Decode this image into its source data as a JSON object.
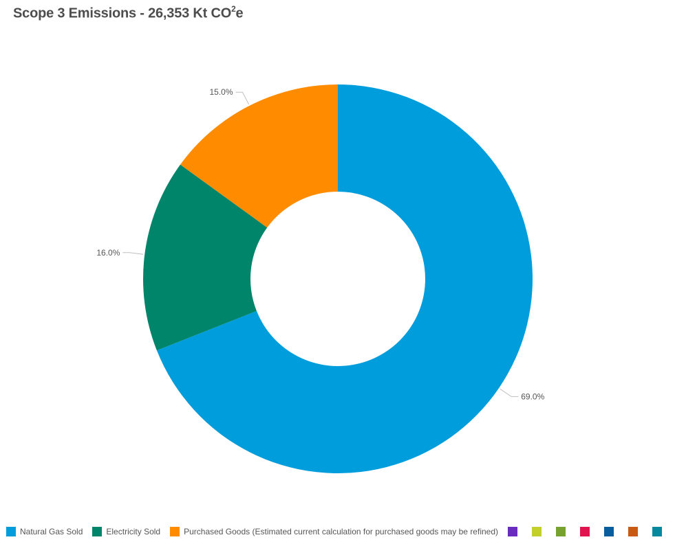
{
  "header": {
    "title_main": "Scope 3 Emissions - 26,353 Kt CO",
    "title_sup": "2",
    "title_end": "e"
  },
  "chart_data": {
    "type": "pie",
    "donut": true,
    "title": "Scope 3 Emissions - 26,353 Kt CO²e",
    "unit": "%",
    "legend_position": "bottom-left",
    "slices": [
      {
        "name": "Natural Gas Sold",
        "value": 69.0,
        "label": "69.0%",
        "color": "#009ddc"
      },
      {
        "name": "Electricity Sold",
        "value": 16.0,
        "label": "16.0%",
        "color": "#00856a"
      },
      {
        "name": "Purchased Goods (Estimated current calculation for purchased goods may be refined)",
        "value": 15.0,
        "label": "15.0%",
        "color": "#ff8c00"
      }
    ],
    "extra_legend_colors": [
      "#6a2bbf",
      "#c3cf2a",
      "#78a22f",
      "#e0144f",
      "#085d9c",
      "#c85a14",
      "#06889e"
    ]
  }
}
